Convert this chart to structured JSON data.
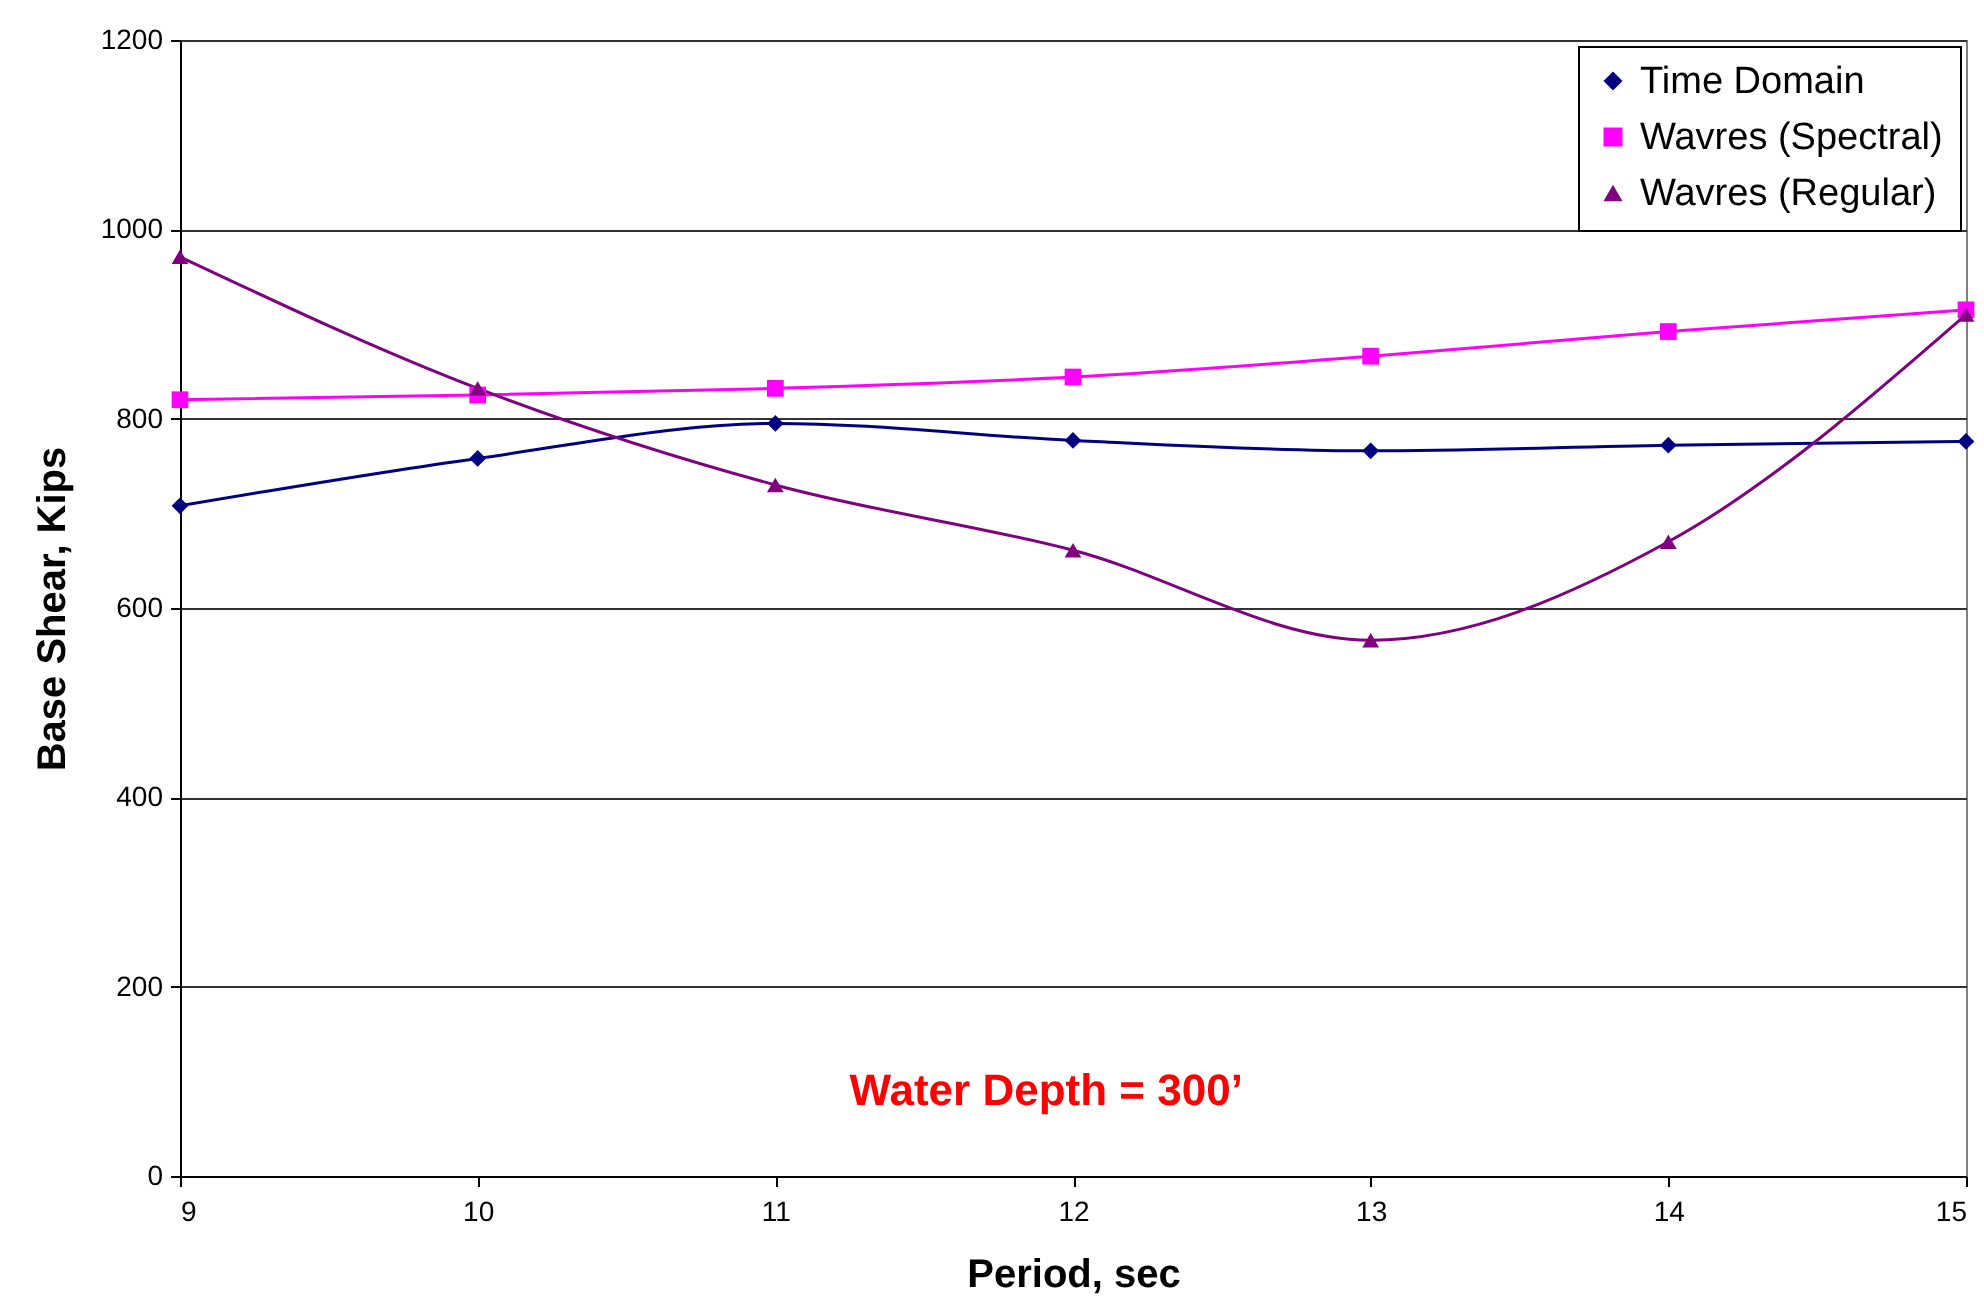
{
  "chart_data": {
    "type": "line",
    "xlabel": "Period, sec",
    "ylabel": "Base Shear, Kips",
    "x": [
      9,
      10,
      11,
      12,
      13,
      14,
      15
    ],
    "xlim": [
      9,
      15
    ],
    "xticks": [
      9,
      10,
      11,
      12,
      13,
      14,
      15
    ],
    "ylim": [
      0,
      1200
    ],
    "yticks": [
      0,
      200,
      400,
      600,
      800,
      1000,
      1200
    ],
    "grid": "y",
    "legend": "top right",
    "line_style": "solid",
    "series": [
      {
        "name": "Time Domain",
        "color": "#000080",
        "marker": "diamond",
        "values": [
          708,
          758,
          795,
          777,
          766,
          772,
          776
        ]
      },
      {
        "name": "Wavres (Spectral)",
        "color": "#ff00ff",
        "marker": "square",
        "values": [
          820,
          825,
          832,
          844,
          866,
          892,
          915
        ]
      },
      {
        "name": "Wavres (Regular)",
        "color": "#800080",
        "marker": "triangle",
        "values": [
          971,
          832,
          730,
          661,
          566,
          670,
          910
        ]
      }
    ],
    "annotations": [
      "Water Depth = 300’"
    ]
  }
}
